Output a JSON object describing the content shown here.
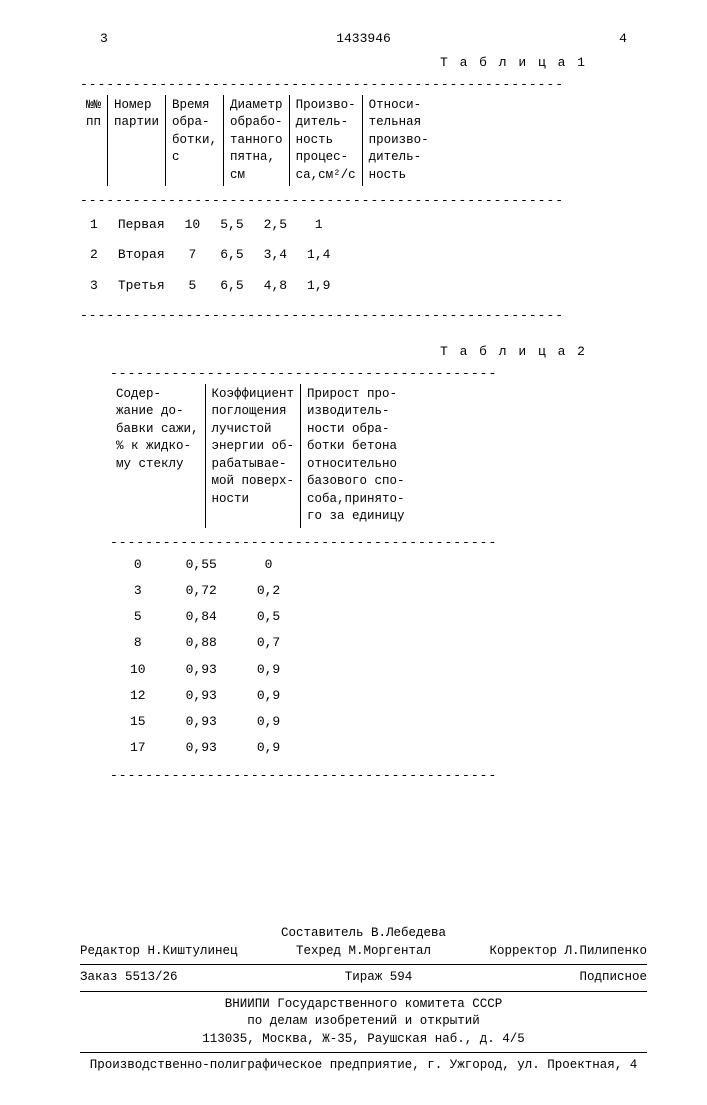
{
  "pageLeft": "3",
  "docNumber": "1433946",
  "pageRight": "4",
  "table1": {
    "caption": "Т а б л и ц а  1",
    "headers": [
      "№№\nпп",
      "Номер\nпартии",
      "Время\nобра-\nботки,\nс",
      "Диаметр\nобрабо-\nтанного\nпятна,\nсм",
      "Произво-\nдитель-\nность\nпроцес-\nса,см²/с",
      "Относи-\nтельная\nпроизво-\nдитель-\nность"
    ],
    "rows": [
      [
        "1",
        "Первая",
        "10",
        "5,5",
        "2,5",
        "1"
      ],
      [
        "2",
        "Вторая",
        "7",
        "6,5",
        "3,4",
        "1,4"
      ],
      [
        "3",
        "Третья",
        "5",
        "6,5",
        "4,8",
        "1,9"
      ]
    ]
  },
  "table2": {
    "caption": "Т а б л и ц а 2",
    "headers": [
      "Содер-\nжание до-\nбавки сажи,\n% к жидко-\nму стеклу",
      "Коэффициент\nпоглощения\nлучистой\nэнергии об-\nрабатывае-\nмой поверх-\nности",
      "Прирост про-\nизводитель-\nности обра-\nботки бетона\nотносительно\nбазового спо-\nсоба,принято-\nго за единицу"
    ],
    "rows": [
      [
        "0",
        "0,55",
        "0"
      ],
      [
        "3",
        "0,72",
        "0,2"
      ],
      [
        "5",
        "0,84",
        "0,5"
      ],
      [
        "8",
        "0,88",
        "0,7"
      ],
      [
        "10",
        "0,93",
        "0,9"
      ],
      [
        "12",
        "0,93",
        "0,9"
      ],
      [
        "15",
        "0,93",
        "0,9"
      ],
      [
        "17",
        "0,93",
        "0,9"
      ]
    ]
  },
  "footer": {
    "author": "Составитель В.Лебедева",
    "editor": "Редактор Н.Киштулинец",
    "tech": "Техред М.Моргентал",
    "corrector": "Корректор Л.Пилипенко",
    "order": "Заказ 5513/26",
    "tirage": "Тираж 594",
    "subscr": "Подписное",
    "org1": "ВНИИПИ Государственного комитета СССР",
    "org2": "по делам изобретений и открытий",
    "addr1": "113035, Москва, Ж-35, Раушская наб., д. 4/5",
    "prod": "Производственно-полиграфическое предприятие, г. Ужгород, ул. Проектная, 4"
  }
}
